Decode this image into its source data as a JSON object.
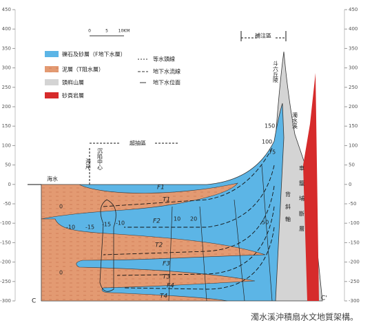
{
  "axis": {
    "ticks": [
      450,
      400,
      350,
      300,
      250,
      200,
      150,
      100,
      50,
      0,
      -50,
      -100,
      -150,
      -200,
      -250,
      -300
    ]
  },
  "scale_bar": {
    "labels": [
      "0",
      "5",
      "10KM"
    ]
  },
  "legend": {
    "items": [
      "礫石及砂層（F地下水層）",
      "泥層（T阻水層）",
      "頭嵙山層",
      "砂頁岩層"
    ],
    "symbols": [
      "等水頭線",
      "地下水流線",
      "地下水位面"
    ]
  },
  "zones": {
    "recharge": "補注區",
    "overdraft": "超抽區"
  },
  "places": {
    "hills": "斗六丘陵",
    "coast": "海岸",
    "subsidence": "沉陷中心",
    "sea": "海水",
    "river": "濁水溪",
    "fault": "車籠埔斷層",
    "anticline": "背斜軸"
  },
  "layers": [
    "F1",
    "T1",
    "F2",
    "T2",
    "F3",
    "T3",
    "F4",
    "T4"
  ],
  "heads": [
    0,
    -10,
    -15,
    -15,
    -10,
    10,
    20,
    50,
    75,
    100,
    150,
    0
  ],
  "section_ends": [
    "C",
    "C'"
  ],
  "caption": "濁水溪沖積扇水文地質架構。"
}
